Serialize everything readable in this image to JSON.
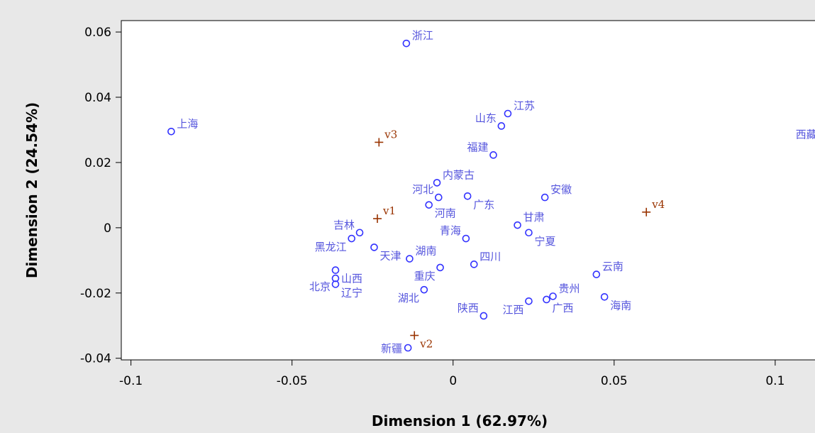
{
  "chart_data": {
    "type": "scatter",
    "title": "",
    "xlabel": "Dimension 1 (62.97%)",
    "ylabel": "Dimension 2 (24.54%)",
    "xlim": [
      -0.103,
      0.115
    ],
    "ylim": [
      -0.0405,
      0.0635
    ],
    "x_ticks": [
      -0.1,
      -0.05,
      0,
      0.05,
      0.1
    ],
    "x_tick_labels": [
      "-0.1",
      "-0.05",
      "0",
      "0.05",
      "0.1"
    ],
    "y_ticks": [
      -0.04,
      -0.02,
      0,
      0.02,
      0.04,
      0.06
    ],
    "y_tick_labels": [
      "-0.04",
      "-0.02",
      "0",
      "0.02",
      "0.04",
      "0.06"
    ],
    "grid": false,
    "series": [
      {
        "marker": "circle",
        "color": "#3333ff",
        "label_color": "#5555dd",
        "points": [
          {
            "label": "浙江",
            "x": -0.0145,
            "y": 0.0565,
            "pos": "upper-right"
          },
          {
            "label": "上海",
            "x": -0.0875,
            "y": 0.0295,
            "pos": "upper-right"
          },
          {
            "label": "西藏",
            "x": 0.1145,
            "y": 0.0312,
            "pos": "lower-left"
          },
          {
            "label": "江苏",
            "x": 0.017,
            "y": 0.035,
            "pos": "upper-right"
          },
          {
            "label": "山东",
            "x": 0.015,
            "y": 0.0312,
            "pos": "upper-left"
          },
          {
            "label": "福建",
            "x": 0.0125,
            "y": 0.0223,
            "pos": "upper-left"
          },
          {
            "label": "内蒙古",
            "x": -0.005,
            "y": 0.0138,
            "pos": "upper-right"
          },
          {
            "label": "河北",
            "x": -0.0045,
            "y": 0.0093,
            "pos": "upper-left"
          },
          {
            "label": "河南",
            "x": -0.0075,
            "y": 0.007,
            "pos": "lower-right"
          },
          {
            "label": "广东",
            "x": 0.0045,
            "y": 0.0097,
            "pos": "lower-right"
          },
          {
            "label": "安徽",
            "x": 0.0285,
            "y": 0.0093,
            "pos": "upper-right"
          },
          {
            "label": "甘肃",
            "x": 0.02,
            "y": 0.0008,
            "pos": "upper-right"
          },
          {
            "label": "宁夏",
            "x": 0.0235,
            "y": -0.0015,
            "pos": "lower-right"
          },
          {
            "label": "青海",
            "x": 0.004,
            "y": -0.0033,
            "pos": "upper-left"
          },
          {
            "label": "吉林",
            "x": -0.029,
            "y": -0.0015,
            "pos": "upper-left"
          },
          {
            "label": "黑龙江",
            "x": -0.0315,
            "y": -0.0033,
            "pos": "lower-left"
          },
          {
            "label": "天津",
            "x": -0.0245,
            "y": -0.006,
            "pos": "lower-right"
          },
          {
            "label": "湖南",
            "x": -0.0135,
            "y": -0.0095,
            "pos": "upper-right"
          },
          {
            "label": "四川",
            "x": 0.0065,
            "y": -0.0112,
            "pos": "upper-right"
          },
          {
            "label": "重庆",
            "x": -0.004,
            "y": -0.0122,
            "pos": "lower-left"
          },
          {
            "label": "山西",
            "x": -0.0365,
            "y": -0.013,
            "pos": "lower-right"
          },
          {
            "label": "北京",
            "x": -0.0365,
            "y": -0.0155,
            "pos": "lower-left"
          },
          {
            "label": "辽宁",
            "x": -0.0365,
            "y": -0.0173,
            "pos": "lower-right"
          },
          {
            "label": "湖北",
            "x": -0.009,
            "y": -0.019,
            "pos": "lower-left"
          },
          {
            "label": "云南",
            "x": 0.0445,
            "y": -0.0143,
            "pos": "upper-right"
          },
          {
            "label": "贵州",
            "x": 0.031,
            "y": -0.021,
            "pos": "upper-right"
          },
          {
            "label": "广西",
            "x": 0.029,
            "y": -0.022,
            "pos": "lower-right"
          },
          {
            "label": "海南",
            "x": 0.047,
            "y": -0.0212,
            "pos": "lower-right"
          },
          {
            "label": "江西",
            "x": 0.0235,
            "y": -0.0225,
            "pos": "lower-left"
          },
          {
            "label": "陕西",
            "x": 0.0095,
            "y": -0.027,
            "pos": "upper-left"
          },
          {
            "label": "新疆",
            "x": -0.014,
            "y": -0.0368,
            "pos": "left"
          }
        ]
      },
      {
        "marker": "plus",
        "color": "#993300",
        "label_color": "#993300",
        "points": [
          {
            "label": "v1",
            "x": -0.0235,
            "y": 0.0028,
            "pos": "upper-right"
          },
          {
            "label": "v2",
            "x": -0.012,
            "y": -0.033,
            "pos": "lower-right"
          },
          {
            "label": "v3",
            "x": -0.023,
            "y": 0.0262,
            "pos": "upper-right"
          },
          {
            "label": "v4",
            "x": 0.06,
            "y": 0.0048,
            "pos": "upper-right"
          }
        ]
      }
    ]
  }
}
